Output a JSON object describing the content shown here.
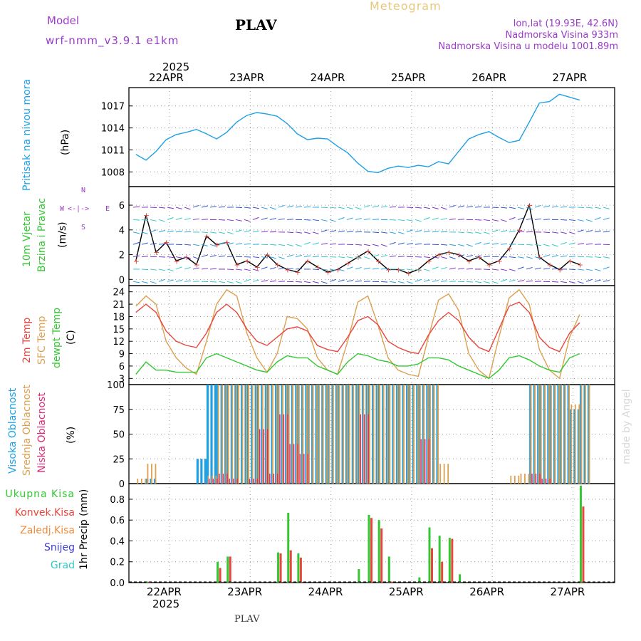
{
  "header": {
    "model_label": "Model",
    "model_name": "wrf-nmm_v3.9.1 e1km",
    "station": "PLAV",
    "title": "Meteogram",
    "lonlat": "lon,lat (19.93E, 42.6N)",
    "altitude": "Nadmorska Visina 933m",
    "model_altitude": "Nadmorska Visina u modelu 1001.89m"
  },
  "time_axis": {
    "top_labels": [
      "22APR",
      "23APR",
      "24APR",
      "25APR",
      "26APR",
      "27APR"
    ],
    "bottom_labels": [
      "22APR",
      "23APR",
      "24APR",
      "25APR",
      "26APR",
      "27APR"
    ],
    "year": "2025"
  },
  "footer": {
    "station": "PLAV",
    "credit": "made by Angel"
  },
  "colors": {
    "pressure": "#1ea0e6",
    "temp2m": "#e8463c",
    "sfc_temp": "#dca050",
    "dewpt": "#32c832",
    "cloud_high": "#1ea0e6",
    "cloud_mid": "#dca050",
    "cloud_low": "#dc2878",
    "precip_total": "#32c832",
    "precip_conv": "#e8463c",
    "precip_frz": "#f08c3c",
    "precip_snow": "#3c3cdc",
    "precip_grad": "#32c8c8"
  },
  "panels": {
    "pressure": {
      "label": "Pritisak na nivou mora",
      "unit": "(hPa)"
    },
    "wind": {
      "label_1": "10m Vjetar",
      "label_2": "Brzina i Pravac",
      "unit": "(m/s)",
      "compass_n": "N",
      "compass_w": "W",
      "compass_e": "E",
      "compass_s": "S",
      "compass_arrows": "<-|->"
    },
    "temp": {
      "label_2m": "2m Temp",
      "label_sfc": "SFC Temp",
      "label_dew": "dewpt Temp",
      "unit": "(C)"
    },
    "cloud": {
      "label_high": "Visoka Oblacnost",
      "label_mid": "Srednja Oblacnost",
      "label_low": "Niska Oblacnost",
      "unit": "(%)"
    },
    "precip": {
      "label_total": "Ukupna Kisa",
      "label_conv": "Konvek.Kisa",
      "label_frz": "Zaledj.Kisa",
      "label_snow": "Snijeg",
      "label_grad": "Grad",
      "unit": "1hr Precip (mm)"
    }
  },
  "chart_data": [
    {
      "type": "line",
      "title": "Pritisak na nivou mora",
      "ylabel": "(hPa)",
      "x_start": "2025-04-21T14:00",
      "x_step_hours": 3,
      "ylim": [
        1006,
        1019.5
      ],
      "yticks": [
        1008,
        1011,
        1014,
        1017
      ],
      "series": [
        {
          "name": "Pritisak na nivou mora",
          "values": [
            1010.4,
            1009.6,
            1010.8,
            1012.4,
            1013.1,
            1013.4,
            1013.8,
            1013.2,
            1012.5,
            1013.4,
            1014.8,
            1015.7,
            1016.1,
            1015.9,
            1015.6,
            1014.6,
            1013.2,
            1012.4,
            1012.6,
            1012.5,
            1011.5,
            1010.6,
            1009.2,
            1008.1,
            1007.9,
            1008.5,
            1008.8,
            1008.6,
            1008.9,
            1008.7,
            1009.4,
            1009.1,
            1010.8,
            1012.5,
            1013.1,
            1013.5,
            1012.7,
            1012.0,
            1012.3,
            1014.8,
            1017.4,
            1017.6,
            1018.6,
            1018.2,
            1017.8
          ]
        }
      ]
    },
    {
      "type": "line",
      "title": "10m Vjetar Brzina i Pravac",
      "ylabel": "(m/s)",
      "x_start": "2025-04-21T14:00",
      "x_step_hours": 3,
      "ylim": [
        -0.5,
        7.5
      ],
      "yticks": [
        0,
        2,
        4,
        6
      ],
      "series": [
        {
          "name": "10m Vjetar",
          "values": [
            1.5,
            5.2,
            2.2,
            3.0,
            1.5,
            1.8,
            1.2,
            3.5,
            2.8,
            3.0,
            1.2,
            1.5,
            1.0,
            2.0,
            1.2,
            0.8,
            0.6,
            1.5,
            1.0,
            0.6,
            0.8,
            1.3,
            1.8,
            2.3,
            1.5,
            0.8,
            0.8,
            0.5,
            0.8,
            1.5,
            2.0,
            2.2,
            2.0,
            1.5,
            1.8,
            1.2,
            1.5,
            2.5,
            4.0,
            6.0,
            1.8,
            1.2,
            0.8,
            1.5,
            1.2
          ]
        }
      ]
    },
    {
      "type": "line",
      "title": "",
      "ylabel": "(C)",
      "x_start": "2025-04-21T14:00",
      "x_step_hours": 3,
      "ylim": [
        1.5,
        25.5
      ],
      "yticks": [
        3,
        6,
        9,
        12,
        15,
        18,
        21,
        24
      ],
      "series": [
        {
          "name": "2m Temp",
          "values": [
            19.0,
            21.0,
            19.0,
            14.5,
            12.0,
            11.0,
            10.5,
            14.0,
            19.0,
            21.0,
            19.0,
            15.0,
            12.0,
            11.0,
            13.0,
            15.0,
            15.5,
            14.5,
            11.0,
            10.0,
            9.5,
            13.0,
            17.0,
            18.0,
            16.0,
            12.0,
            10.5,
            9.5,
            9.0,
            13.5,
            17.0,
            19.0,
            17.0,
            13.0,
            10.5,
            9.5,
            15.0,
            20.5,
            21.5,
            19.0,
            13.0,
            10.5,
            9.5,
            14.0,
            16.5
          ]
        },
        {
          "name": "SFC Temp",
          "values": [
            20.5,
            23.0,
            21.0,
            12.0,
            8.0,
            5.5,
            4.0,
            12.0,
            21.0,
            24.5,
            23.0,
            14.0,
            8.0,
            4.5,
            9.0,
            18.0,
            17.5,
            15.0,
            8.0,
            5.0,
            4.0,
            12.0,
            21.5,
            23.0,
            16.0,
            8.0,
            5.0,
            4.0,
            3.5,
            13.0,
            22.0,
            23.5,
            19.5,
            9.0,
            5.0,
            3.0,
            13.0,
            22.5,
            24.5,
            21.0,
            10.0,
            5.0,
            3.0,
            13.0,
            18.5
          ]
        },
        {
          "name": "dewpt Temp",
          "values": [
            4.0,
            7.0,
            5.0,
            5.0,
            4.5,
            4.5,
            4.5,
            8.0,
            9.0,
            8.0,
            7.0,
            6.0,
            5.0,
            4.5,
            7.0,
            8.5,
            8.0,
            8.0,
            6.0,
            5.0,
            4.0,
            7.0,
            9.0,
            8.5,
            7.5,
            7.0,
            6.0,
            6.0,
            6.5,
            8.0,
            8.0,
            7.5,
            6.0,
            5.0,
            4.0,
            3.0,
            5.0,
            8.0,
            8.5,
            7.5,
            6.0,
            5.0,
            4.5,
            8.0,
            9.0
          ]
        }
      ]
    },
    {
      "type": "bar",
      "title": "",
      "ylabel": "(%)",
      "x_start": "2025-04-21T14:00",
      "x_step_hours": 3,
      "ylim": [
        0,
        100
      ],
      "yticks": [
        0,
        25,
        50,
        75,
        100
      ],
      "series": [
        {
          "name": "Visoka Oblacnost",
          "values": [
            0,
            5,
            0,
            0,
            0,
            0,
            25,
            100,
            100,
            100,
            100,
            100,
            100,
            100,
            100,
            100,
            100,
            100,
            100,
            100,
            100,
            100,
            100,
            100,
            100,
            100,
            100,
            100,
            100,
            100,
            0,
            0,
            0,
            0,
            0,
            0,
            0,
            0,
            0,
            100,
            100,
            100,
            100,
            75,
            100
          ]
        },
        {
          "name": "Srednja Oblacnost",
          "values": [
            5,
            20,
            0,
            0,
            0,
            0,
            0,
            8,
            100,
            100,
            100,
            100,
            100,
            100,
            100,
            100,
            100,
            100,
            100,
            100,
            100,
            100,
            100,
            100,
            100,
            100,
            100,
            100,
            100,
            100,
            20,
            0,
            0,
            0,
            0,
            0,
            0,
            8,
            10,
            100,
            100,
            100,
            100,
            80,
            100
          ]
        },
        {
          "name": "Niska Oblacnost",
          "values": [
            0,
            0,
            0,
            0,
            0,
            0,
            0,
            5,
            10,
            5,
            0,
            5,
            55,
            10,
            70,
            40,
            30,
            0,
            0,
            0,
            0,
            0,
            70,
            0,
            0,
            0,
            0,
            0,
            45,
            0,
            0,
            0,
            0,
            0,
            0,
            0,
            0,
            0,
            0,
            10,
            5,
            0,
            0,
            0,
            0
          ]
        }
      ]
    },
    {
      "type": "bar",
      "title": "",
      "ylabel": "1hr Precip (mm)",
      "x_start": "2025-04-21T14:00",
      "x_step_hours": 3,
      "ylim": [
        0,
        0.95
      ],
      "yticks": [
        0.0,
        0.2,
        0.4,
        0.6,
        0.8
      ],
      "series": [
        {
          "name": "Ukupna Kisa",
          "values": [
            0,
            0.01,
            0,
            0,
            0,
            0,
            0,
            0,
            0.2,
            0.25,
            0,
            0,
            0,
            0,
            0.29,
            0.67,
            0.28,
            0,
            0,
            0,
            0,
            0,
            0.13,
            0.65,
            0.6,
            0.25,
            0,
            0,
            0.05,
            0.53,
            0.45,
            0.43,
            0.08,
            0,
            0,
            0,
            0,
            0,
            0,
            0,
            0,
            0,
            0,
            0,
            0.93
          ]
        },
        {
          "name": "Konvek.Kisa",
          "values": [
            0,
            0.01,
            0,
            0,
            0,
            0,
            0,
            0,
            0.14,
            0.25,
            0,
            0,
            0,
            0,
            0.28,
            0.31,
            0.24,
            0,
            0,
            0,
            0,
            0,
            0,
            0.62,
            0.52,
            0.01,
            0,
            0,
            0,
            0.33,
            0.2,
            0.42,
            0,
            0,
            0,
            0,
            0,
            0,
            0,
            0,
            0,
            0,
            0,
            0,
            0.73
          ]
        }
      ]
    }
  ]
}
